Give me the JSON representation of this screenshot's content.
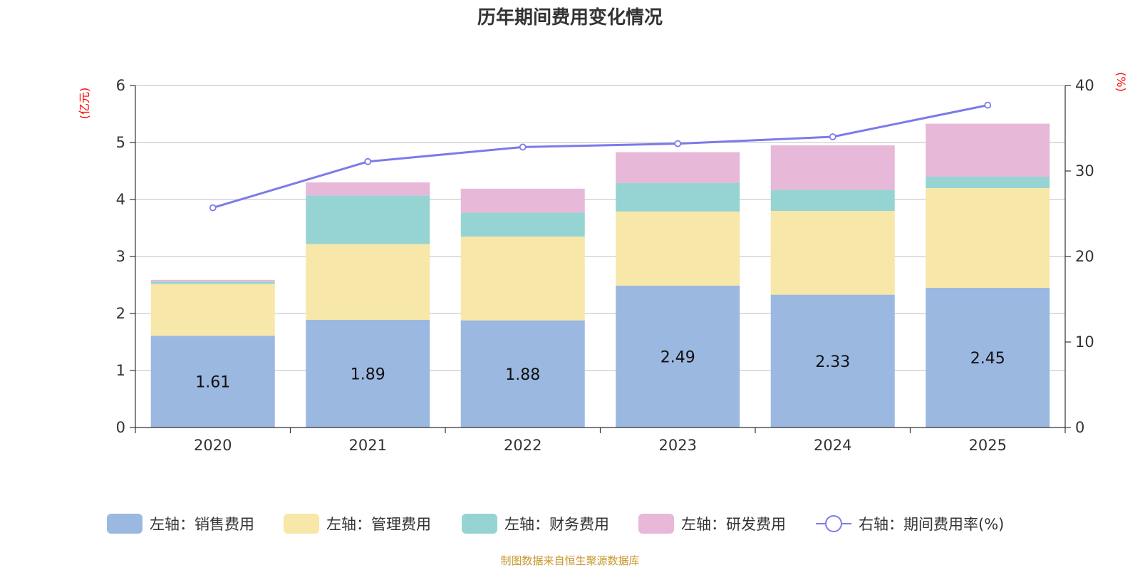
{
  "chart_data": {
    "type": "bar",
    "stacked": true,
    "title": "历年期间费用变化情况",
    "categories": [
      "2020",
      "2021",
      "2022",
      "2023",
      "2024",
      "2025"
    ],
    "left_axis": {
      "unit": "(亿元)",
      "ylim": [
        0,
        6
      ],
      "ticks": [
        "0",
        "1",
        "2",
        "3",
        "4",
        "5",
        "6"
      ]
    },
    "right_axis": {
      "unit": "(%)",
      "ylim": [
        0,
        40
      ],
      "ticks": [
        "0",
        "10",
        "20",
        "30",
        "40"
      ]
    },
    "series": [
      {
        "name": "左轴：销售费用",
        "axis": "left",
        "color": "#9bb8e1",
        "values": [
          1.61,
          1.89,
          1.88,
          2.49,
          2.33,
          2.45
        ],
        "labels": [
          "1.61",
          "1.89",
          "1.88",
          "2.49",
          "2.33",
          "2.45"
        ]
      },
      {
        "name": "左轴：管理费用",
        "axis": "left",
        "color": "#f7e7a8",
        "values": [
          0.91,
          1.33,
          1.47,
          1.3,
          1.47,
          1.75
        ]
      },
      {
        "name": "左轴：财务费用",
        "axis": "left",
        "color": "#96d4d4",
        "values": [
          0.04,
          0.85,
          0.42,
          0.5,
          0.37,
          0.2
        ]
      },
      {
        "name": "左轴：研发费用",
        "axis": "left",
        "color": "#e7b8d8",
        "values": [
          0.03,
          0.23,
          0.42,
          0.54,
          0.78,
          0.93
        ]
      },
      {
        "name": "右轴：期间费用率(%)",
        "axis": "right",
        "type": "line",
        "color": "#7b7bea",
        "values": [
          25.7,
          31.1,
          32.8,
          33.2,
          34.0,
          37.7
        ]
      }
    ],
    "grid": true,
    "legend_position": "bottom"
  },
  "source": "制图数据来自恒生聚源数据库"
}
